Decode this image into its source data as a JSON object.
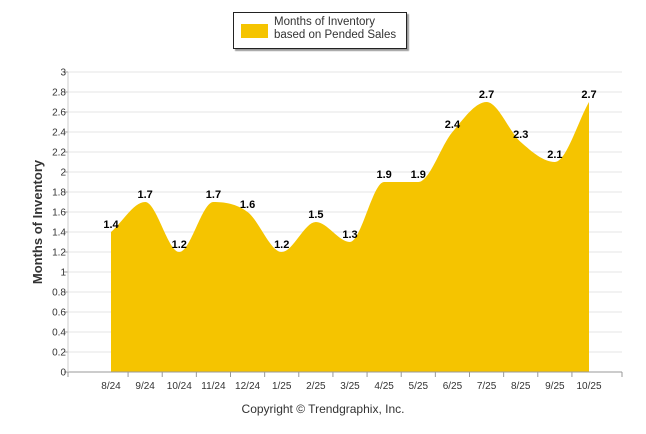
{
  "chart_data": {
    "type": "area",
    "title": "",
    "xlabel": "",
    "ylabel": "Months of Inventory",
    "ylim": [
      0,
      3
    ],
    "yticks": [
      "0",
      "0.2",
      "0.4",
      "0.6",
      "0.8",
      "1",
      "1.2",
      "1.4",
      "1.6",
      "1.8",
      "2",
      "2.2",
      "2.4",
      "2.6",
      "2.8",
      "3"
    ],
    "grid": true,
    "legend_position": "top-center",
    "categories": [
      "8/24",
      "9/24",
      "10/24",
      "11/24",
      "12/24",
      "1/25",
      "2/25",
      "3/25",
      "4/25",
      "5/25",
      "6/25",
      "7/25",
      "8/25",
      "9/25",
      "10/25"
    ],
    "series": [
      {
        "name": "Months of Inventory based on Pended Sales",
        "color": "#f5c400",
        "values": [
          1.4,
          1.7,
          1.2,
          1.7,
          1.6,
          1.2,
          1.5,
          1.3,
          1.9,
          1.9,
          2.4,
          2.7,
          2.3,
          2.1,
          2.7
        ],
        "labels": [
          "1.4",
          "1.7",
          "1.2",
          "1.7",
          "1.6",
          "1.2",
          "1.5",
          "1.3",
          "1.9",
          "1.9",
          "2.4",
          "2.7",
          "2.3",
          "2.1",
          "2.7"
        ]
      }
    ]
  },
  "legend": {
    "label": "Months of Inventory based on Pended Sales"
  },
  "footer": {
    "copyright": "Copyright © Trendgraphix, Inc."
  }
}
